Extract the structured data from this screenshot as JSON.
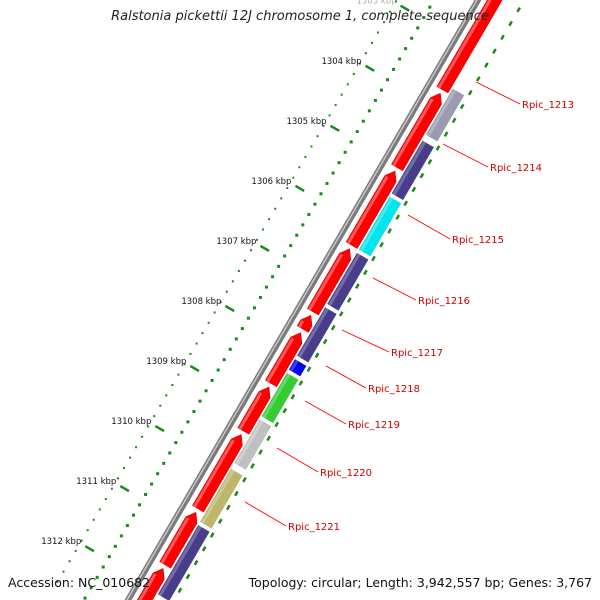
{
  "title": "Ralstonia pickettii 12J chromosome 1, complete sequence",
  "footer": {
    "accession": "Accession: NC_010682",
    "summary": "Topology: circular; Length: 3,942,557 bp; Genes: 3,767"
  },
  "ruler": {
    "ticks": [
      "1303 kbp",
      "1304 kbp",
      "1305 kbp",
      "1306 kbp",
      "1307 kbp",
      "1308 kbp",
      "1309 kbp",
      "1310 kbp",
      "1311 kbp",
      "1312 kbp"
    ],
    "tick_color": "#1a8a1a"
  },
  "genes": [
    {
      "label": "Rpic_1213",
      "color": "#9a9ab0"
    },
    {
      "label": "Rpic_1214",
      "color": "#483d8b"
    },
    {
      "label": "Rpic_1215",
      "color": "#00e5ee"
    },
    {
      "label": "Rpic_1216",
      "color": "#483d8b"
    },
    {
      "label": "Rpic_1217",
      "color": "#483d8b"
    },
    {
      "label": "Rpic_1218",
      "color": "#0000ee"
    },
    {
      "label": "Rpic_1219",
      "color": "#33cc33"
    },
    {
      "label": "Rpic_1220",
      "color": "#c0c0c0"
    },
    {
      "label": "Rpic_1221",
      "color": "#bdb76b"
    }
  ],
  "colors": {
    "forward_strand": "#ff0000",
    "backbone": "#888888",
    "label_line": "#ff0000",
    "label_text": "#cc0000"
  }
}
